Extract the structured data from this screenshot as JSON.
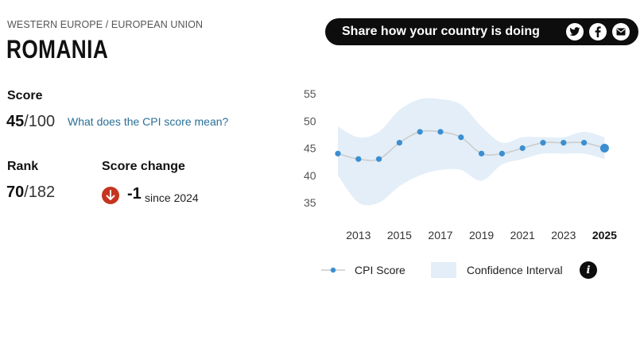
{
  "header": {
    "region": "WESTERN EUROPE / EUROPEAN UNION",
    "country": "ROMANIA"
  },
  "score": {
    "label": "Score",
    "value": "45",
    "denominator": "/100",
    "link_text": "What does the CPI score mean?"
  },
  "rank": {
    "label": "Rank",
    "value": "70",
    "denominator": "/182"
  },
  "score_change": {
    "label": "Score change",
    "value": "-1",
    "since": "since 2024",
    "direction_icon": "arrow-down-icon",
    "color": "#c4341f"
  },
  "share": {
    "text": "Share how your country is doing",
    "icons": [
      "twitter-icon",
      "facebook-icon",
      "email-icon"
    ]
  },
  "legend": {
    "cpi": "CPI Score",
    "ci": "Confidence Interval",
    "info_glyph": "i"
  },
  "chart_data": {
    "type": "line",
    "x": [
      2012,
      2013,
      2014,
      2015,
      2016,
      2017,
      2018,
      2019,
      2020,
      2021,
      2022,
      2023,
      2024,
      2025
    ],
    "series": [
      {
        "name": "CPI Score",
        "values": [
          44,
          43,
          43,
          46,
          48,
          48,
          47,
          44,
          44,
          45,
          46,
          46,
          46,
          45
        ],
        "color": "#3b8fd1"
      }
    ],
    "confidence_interval": {
      "name": "Confidence Interval",
      "lower": [
        40,
        35,
        35,
        38,
        40,
        41,
        41,
        39,
        42,
        43,
        44,
        44,
        44,
        43
      ],
      "upper": [
        49,
        47,
        48,
        52,
        54,
        54,
        53,
        49,
        46,
        47,
        47,
        47,
        48,
        47
      ],
      "color": "#e3eef8"
    },
    "y_ticks": [
      35,
      40,
      45,
      50,
      55
    ],
    "x_tick_labels": [
      "2013",
      "2015",
      "2017",
      "2019",
      "2021",
      "2023",
      "2025"
    ],
    "highlight_x": "2025",
    "ylim": [
      35,
      55
    ],
    "grid": false,
    "line_color": "#cccccc"
  }
}
